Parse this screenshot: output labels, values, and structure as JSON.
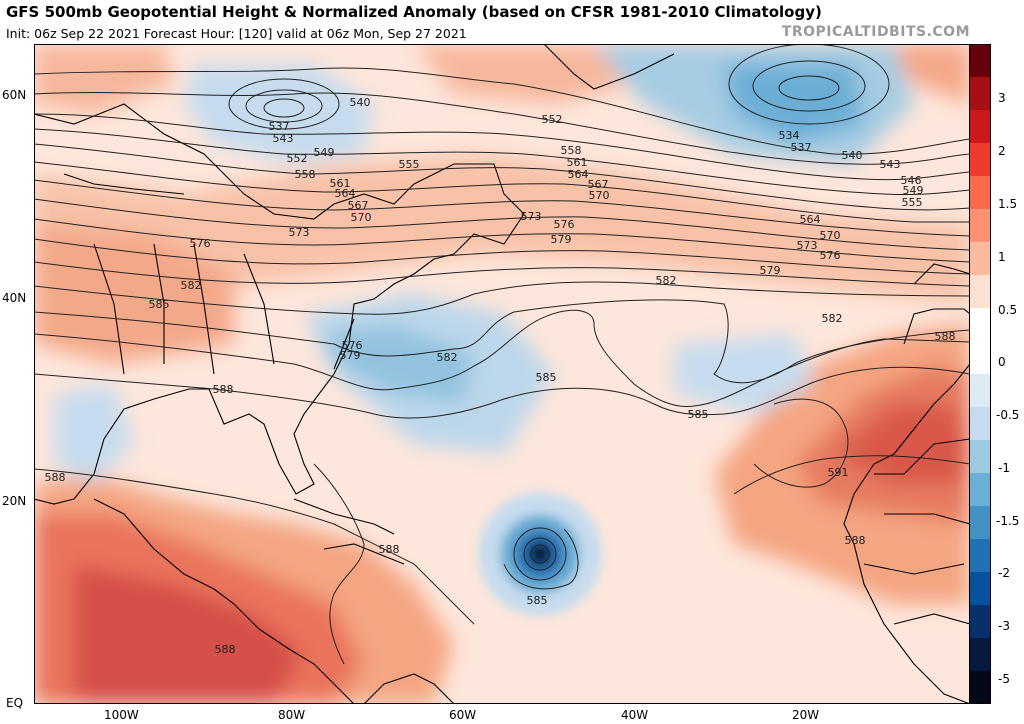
{
  "header": {
    "title": "GFS 500mb Geopotential Height & Normalized Anomaly (based on CFSR 1981-2010 Climatology)",
    "subtitle": "Init: 06z Sep 22 2021   Forecast Hour: [120]   valid at 06z Mon, Sep 27 2021",
    "brand": "TROPICALTIDBITS.COM"
  },
  "axes": {
    "lat_labels": [
      "60N",
      "40N",
      "20N",
      "EQ"
    ],
    "lon_labels": [
      "100W",
      "80W",
      "60W",
      "40W",
      "20W"
    ]
  },
  "colorbar": {
    "tick_labels": [
      "3",
      "2",
      "1.5",
      "1",
      "0.5",
      "0",
      "-0.5",
      "-1",
      "-1.5",
      "-2",
      "-3",
      "-5"
    ],
    "colors": [
      "#67000d",
      "#a50f15",
      "#cb181d",
      "#ef3b2c",
      "#fb6a4a",
      "#fc9272",
      "#fcbba1",
      "#fee0d2",
      "#ffffff",
      "#ffffff",
      "#deebf7",
      "#c6dbef",
      "#9ecae1",
      "#6baed6",
      "#4292c6",
      "#2171b5",
      "#08519c",
      "#08306b",
      "#061a40",
      "#020817"
    ]
  },
  "contour_labels": [
    {
      "text": "540"
    },
    {
      "text": "537"
    },
    {
      "text": "543"
    },
    {
      "text": "549"
    },
    {
      "text": "552"
    },
    {
      "text": "555"
    },
    {
      "text": "558"
    },
    {
      "text": "561"
    },
    {
      "text": "564"
    },
    {
      "text": "567"
    },
    {
      "text": "570"
    },
    {
      "text": "573"
    },
    {
      "text": "576"
    },
    {
      "text": "582"
    },
    {
      "text": "585"
    },
    {
      "text": "552"
    },
    {
      "text": "558"
    },
    {
      "text": "561"
    },
    {
      "text": "564"
    },
    {
      "text": "567"
    },
    {
      "text": "570"
    },
    {
      "text": "573"
    },
    {
      "text": "576"
    },
    {
      "text": "579"
    },
    {
      "text": "534"
    },
    {
      "text": "537"
    },
    {
      "text": "540"
    },
    {
      "text": "543"
    },
    {
      "text": "546"
    },
    {
      "text": "549"
    },
    {
      "text": "555"
    },
    {
      "text": "564"
    },
    {
      "text": "570"
    },
    {
      "text": "573"
    },
    {
      "text": "576"
    },
    {
      "text": "579"
    },
    {
      "text": "582"
    },
    {
      "text": "582"
    },
    {
      "text": "576"
    },
    {
      "text": "579"
    },
    {
      "text": "582"
    },
    {
      "text": "585"
    },
    {
      "text": "588"
    },
    {
      "text": "585"
    },
    {
      "text": "588"
    },
    {
      "text": "588"
    },
    {
      "text": "591"
    },
    {
      "text": "588"
    },
    {
      "text": "585"
    },
    {
      "text": "588"
    },
    {
      "text": "588"
    }
  ]
}
